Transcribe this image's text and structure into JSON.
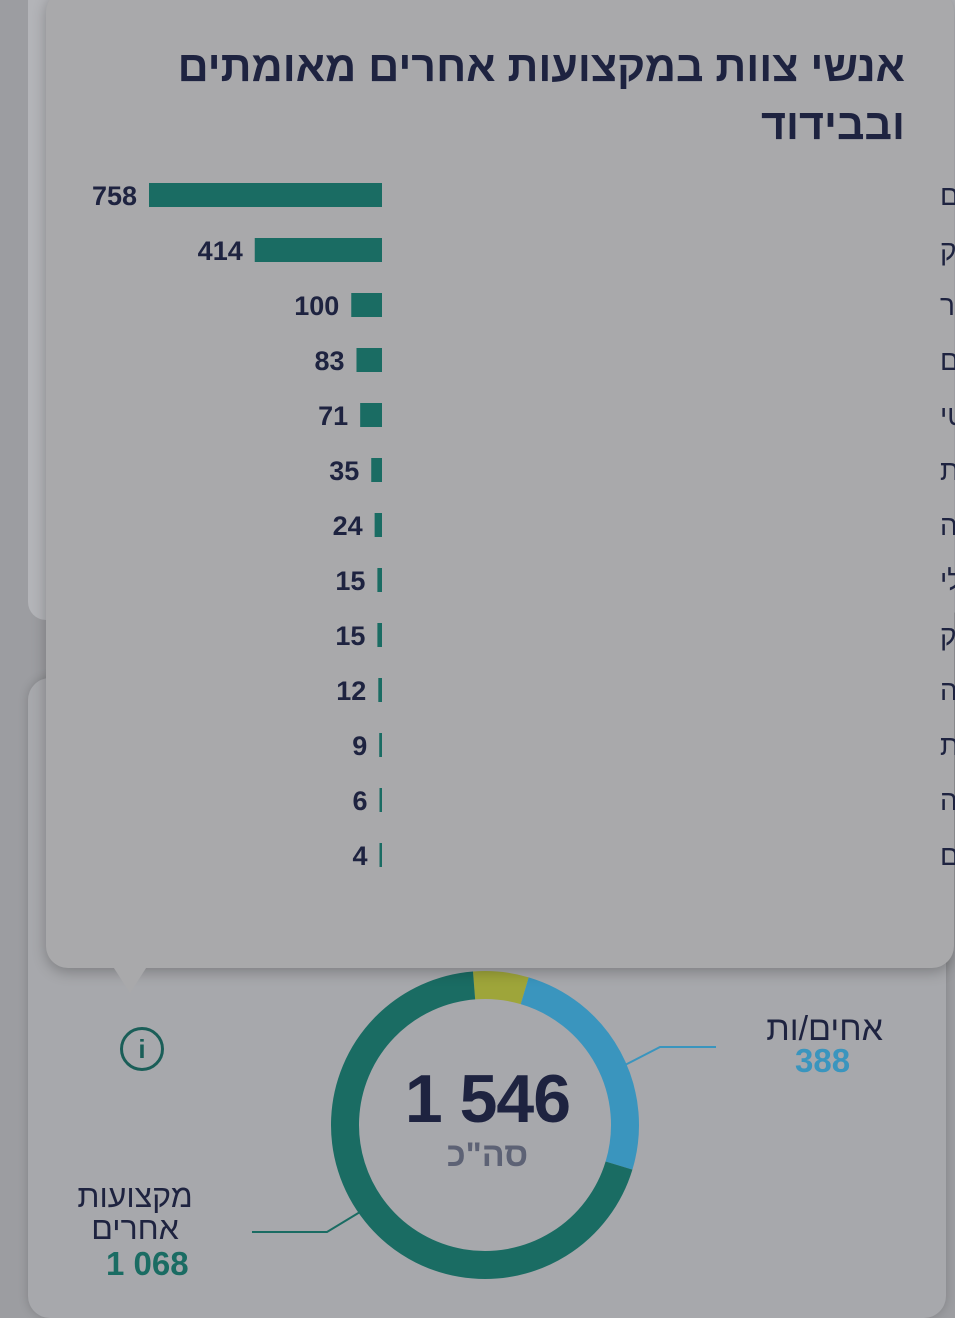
{
  "tooltip": {
    "title": "אנשי צוות במקצועות אחרים מאומתים ובבידוד"
  },
  "chart_data": [
    {
      "type": "bar",
      "orientation": "horizontal",
      "title": "אנשי צוות במקצועות אחרים מאומתים ובבידוד",
      "categories": [
        "סקטורים אחרים",
        "מינהל ומשק",
        "כוח עזר",
        "חובשי רפואת חירום",
        "מערך לוגיסטי",
        "רוקחות",
        "מעבדה",
        "שירות סוציאלי",
        "ריפוי בעיסוק",
        "פיזיותרפיה",
        "קלינאות תקשורת",
        "פסיכולוגיה",
        "פראמדיקים"
      ],
      "values": [
        758,
        414,
        100,
        83,
        71,
        35,
        24,
        15,
        15,
        12,
        9,
        6,
        4
      ],
      "color": "#1a6c63"
    },
    {
      "type": "pie",
      "donut": true,
      "total_value": "1 546",
      "total_label": "סה\"כ",
      "slices": [
        {
          "name": "אחים/ות",
          "value": 388,
          "value_label": "388",
          "color": "#3a95be"
        },
        {
          "name": "מקצועות אחרים",
          "value": 1068,
          "value_label": "1 068",
          "color": "#1a6c63"
        },
        {
          "name": "",
          "value": 90,
          "color": "#9ea53a"
        }
      ]
    }
  ],
  "icons": {
    "info": "info-icon",
    "info_glyph": "i"
  }
}
